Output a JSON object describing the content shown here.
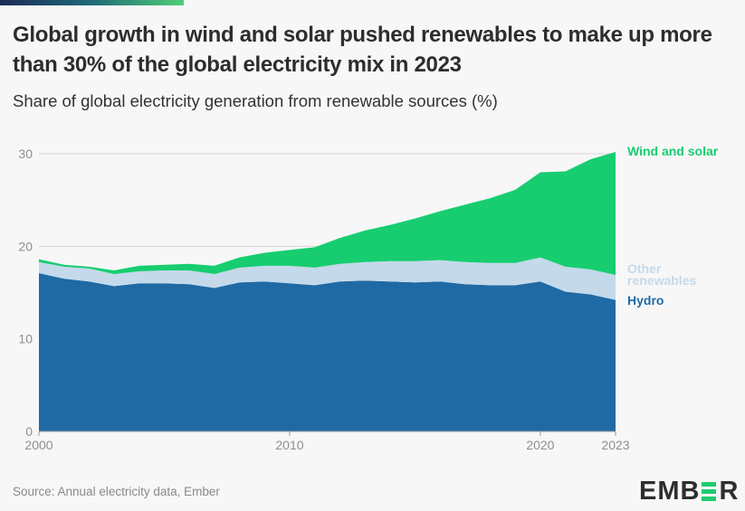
{
  "header": {
    "title": "Global growth in wind and solar pushed renewables to make up more than 30% of the global electricity mix in 2023",
    "subtitle": "Share of global electricity generation from renewable sources (%)"
  },
  "footer": {
    "source": "Source: Annual electricity data, Ember",
    "logo_text": "EMBER"
  },
  "colors": {
    "hydro": "#1f6aa5",
    "other": "#c4d9ea",
    "wind_solar": "#17cd70",
    "other_label": "#c4d9ea",
    "background": "#f7f7f7"
  },
  "chart_data": {
    "type": "area",
    "stacked": true,
    "title": "Global growth in wind and solar pushed renewables to make up more than 30% of the global electricity mix in 2023",
    "ylabel": "Share of global electricity generation from renewable sources (%)",
    "xlim": [
      2000,
      2023
    ],
    "ylim": [
      0,
      30
    ],
    "x_ticks": [
      "2000",
      "2010",
      "2020",
      "2023"
    ],
    "y_ticks": [
      "0",
      "10",
      "20",
      "30"
    ],
    "grid": "horizontal",
    "legend": "right, inline labels",
    "x": [
      2000,
      2001,
      2002,
      2003,
      2004,
      2005,
      2006,
      2007,
      2008,
      2009,
      2010,
      2011,
      2012,
      2013,
      2014,
      2015,
      2016,
      2017,
      2018,
      2019,
      2020,
      2021,
      2022,
      2023
    ],
    "series": [
      {
        "name": "Hydro",
        "color": "#1f6aa5",
        "values": [
          17.1,
          16.5,
          16.2,
          15.7,
          16.0,
          16.0,
          15.9,
          15.5,
          16.1,
          16.2,
          16.0,
          15.8,
          16.2,
          16.3,
          16.2,
          16.1,
          16.2,
          15.9,
          15.8,
          15.8,
          16.2,
          15.1,
          14.8,
          14.2
        ]
      },
      {
        "name": "Other renewables",
        "color": "#c4d9ea",
        "values": [
          1.2,
          1.3,
          1.4,
          1.3,
          1.3,
          1.4,
          1.5,
          1.5,
          1.6,
          1.7,
          1.9,
          1.9,
          1.9,
          2.0,
          2.2,
          2.3,
          2.3,
          2.4,
          2.4,
          2.4,
          2.6,
          2.7,
          2.7,
          2.7
        ]
      },
      {
        "name": "Wind and solar",
        "color": "#17cd70",
        "values": [
          0.3,
          0.2,
          0.2,
          0.4,
          0.6,
          0.6,
          0.7,
          0.9,
          1.1,
          1.4,
          1.7,
          2.2,
          2.8,
          3.4,
          3.9,
          4.6,
          5.3,
          6.2,
          7.0,
          7.9,
          9.2,
          10.3,
          11.9,
          13.3
        ]
      }
    ]
  }
}
